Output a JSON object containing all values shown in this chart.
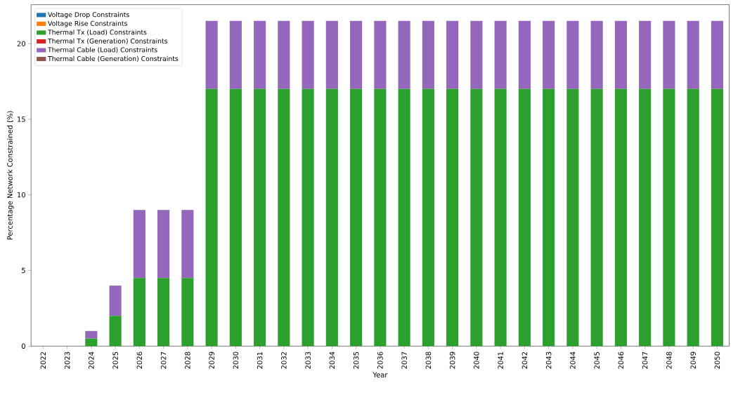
{
  "chart_data": {
    "type": "bar",
    "stacked": true,
    "xlabel": "Year",
    "ylabel": "Percentage Network Constrained (%)",
    "categories": [
      "2022",
      "2023",
      "2024",
      "2025",
      "2026",
      "2027",
      "2028",
      "2029",
      "2030",
      "2031",
      "2032",
      "2033",
      "2034",
      "2035",
      "2036",
      "2037",
      "2038",
      "2039",
      "2040",
      "2041",
      "2042",
      "2043",
      "2044",
      "2045",
      "2046",
      "2047",
      "2048",
      "2049",
      "2050"
    ],
    "series": [
      {
        "name": "Voltage Drop Constraints",
        "color": "#1f77b4",
        "values": [
          0,
          0,
          0,
          0,
          0,
          0,
          0,
          0,
          0,
          0,
          0,
          0,
          0,
          0,
          0,
          0,
          0,
          0,
          0,
          0,
          0,
          0,
          0,
          0,
          0,
          0,
          0,
          0,
          0
        ]
      },
      {
        "name": "Voltage Rise Constraints",
        "color": "#ff7f0e",
        "values": [
          0,
          0,
          0,
          0,
          0,
          0,
          0,
          0,
          0,
          0,
          0,
          0,
          0,
          0,
          0,
          0,
          0,
          0,
          0,
          0,
          0,
          0,
          0,
          0,
          0,
          0,
          0,
          0,
          0
        ]
      },
      {
        "name": "Thermal Tx (Load) Constraints",
        "color": "#2ca02c",
        "values": [
          0,
          0,
          0.5,
          2,
          4.5,
          4.5,
          4.5,
          17,
          17,
          17,
          17,
          17,
          17,
          17,
          17,
          17,
          17,
          17,
          17,
          17,
          17,
          17,
          17,
          17,
          17,
          17,
          17,
          17,
          17
        ]
      },
      {
        "name": "Thermal Tx (Generation) Constraints",
        "color": "#d62728",
        "values": [
          0,
          0,
          0,
          0,
          0,
          0,
          0,
          0,
          0,
          0,
          0,
          0,
          0,
          0,
          0,
          0,
          0,
          0,
          0,
          0,
          0,
          0,
          0,
          0,
          0,
          0,
          0,
          0,
          0
        ]
      },
      {
        "name": "Thermal Cable (Load) Constraints",
        "color": "#9467bd",
        "values": [
          0,
          0,
          0.5,
          2,
          4.5,
          4.5,
          4.5,
          4.5,
          4.5,
          4.5,
          4.5,
          4.5,
          4.5,
          4.5,
          4.5,
          4.5,
          4.5,
          4.5,
          4.5,
          4.5,
          4.5,
          4.5,
          4.5,
          4.5,
          4.5,
          4.5,
          4.5,
          4.5,
          4.5
        ]
      },
      {
        "name": "Thermal Cable (Generation) Constraints",
        "color": "#8c564b",
        "values": [
          0,
          0,
          0,
          0,
          0,
          0,
          0,
          0,
          0,
          0,
          0,
          0,
          0,
          0,
          0,
          0,
          0,
          0,
          0,
          0,
          0,
          0,
          0,
          0,
          0,
          0,
          0,
          0,
          0
        ]
      }
    ],
    "ylim": [
      0,
      22.575
    ],
    "yticks": [
      0,
      5,
      10,
      15,
      20
    ],
    "grid": false,
    "legend": "top left"
  }
}
